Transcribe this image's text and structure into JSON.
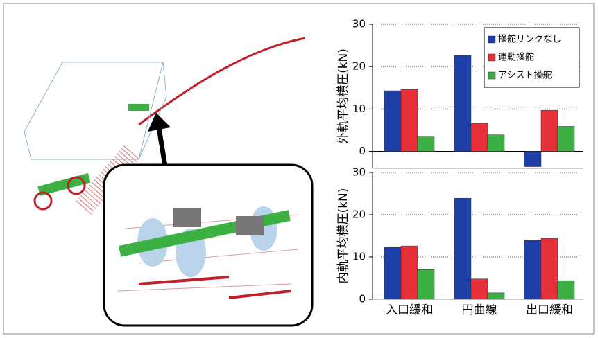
{
  "chart_data": [
    {
      "type": "bar",
      "y_label": "外軌平均横圧(kN)",
      "ylim": [
        -4,
        30
      ],
      "yticks": [
        0,
        10,
        20,
        30
      ],
      "grid": true,
      "legend": "upper-right",
      "series": [
        {
          "name": "操舵リンクなし",
          "color": "#1f3fa8",
          "values": [
            14.3,
            22.6,
            -3.6
          ]
        },
        {
          "name": "連動操舵",
          "color": "#e8303a",
          "values": [
            14.6,
            6.6,
            9.7
          ]
        },
        {
          "name": "アシスト操舵",
          "color": "#3cb043",
          "values": [
            3.4,
            3.9,
            5.9
          ]
        }
      ]
    },
    {
      "type": "bar",
      "y_label": "内軌平均横圧(kN)",
      "categories": [
        "入口緩和",
        "円曲線",
        "出口緩和"
      ],
      "ylim": [
        0,
        30
      ],
      "yticks": [
        0,
        10,
        20,
        30
      ],
      "grid": true,
      "series": [
        {
          "color": "#1f3fa8",
          "values": [
            12.3,
            23.9,
            13.9
          ]
        },
        {
          "color": "#e8303a",
          "values": [
            12.6,
            4.8,
            14.4
          ]
        },
        {
          "color": "#3cb043",
          "values": [
            7.0,
            1.5,
            4.4
          ]
        }
      ]
    }
  ]
}
